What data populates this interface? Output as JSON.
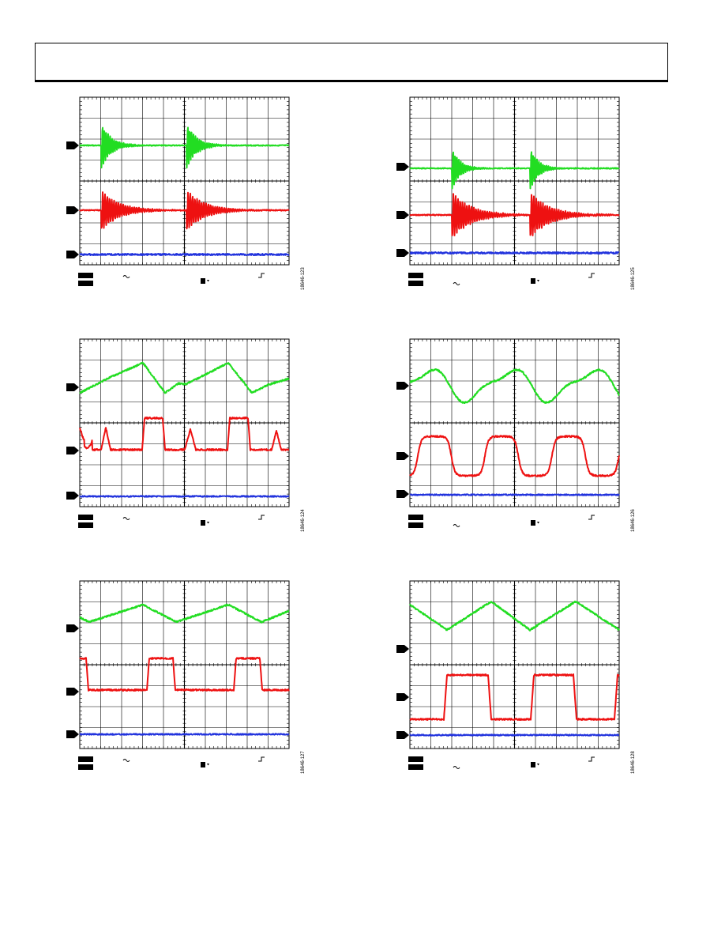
{
  "page": {
    "header_text": ""
  },
  "colors": {
    "ch1": "#22dd22",
    "ch2": "#ee1111",
    "ch3": "#2233dd",
    "grid": "#000000"
  },
  "figures": [
    {
      "id": "18646-123",
      "label": "18646-123",
      "waveform": "ringing",
      "ch_markers": [
        "1",
        "2",
        "3"
      ]
    },
    {
      "id": "18646-125",
      "label": "18646-125",
      "waveform": "ringing-offset",
      "ch_markers": [
        "1",
        "2",
        "3"
      ]
    },
    {
      "id": "18646-124",
      "label": "18646-124",
      "waveform": "triangle-pulse",
      "ch_markers": [
        "1",
        "2",
        "3"
      ]
    },
    {
      "id": "18646-126",
      "label": "18646-126",
      "waveform": "sine-square",
      "ch_markers": [
        "1",
        "2",
        "3"
      ]
    },
    {
      "id": "18646-127",
      "label": "18646-127",
      "waveform": "triangle-square",
      "ch_markers": [
        "1",
        "2",
        "3"
      ]
    },
    {
      "id": "18646-128",
      "label": "18646-128",
      "waveform": "triangle-square-wide",
      "ch_markers": [
        "1",
        "2",
        "3"
      ]
    }
  ]
}
